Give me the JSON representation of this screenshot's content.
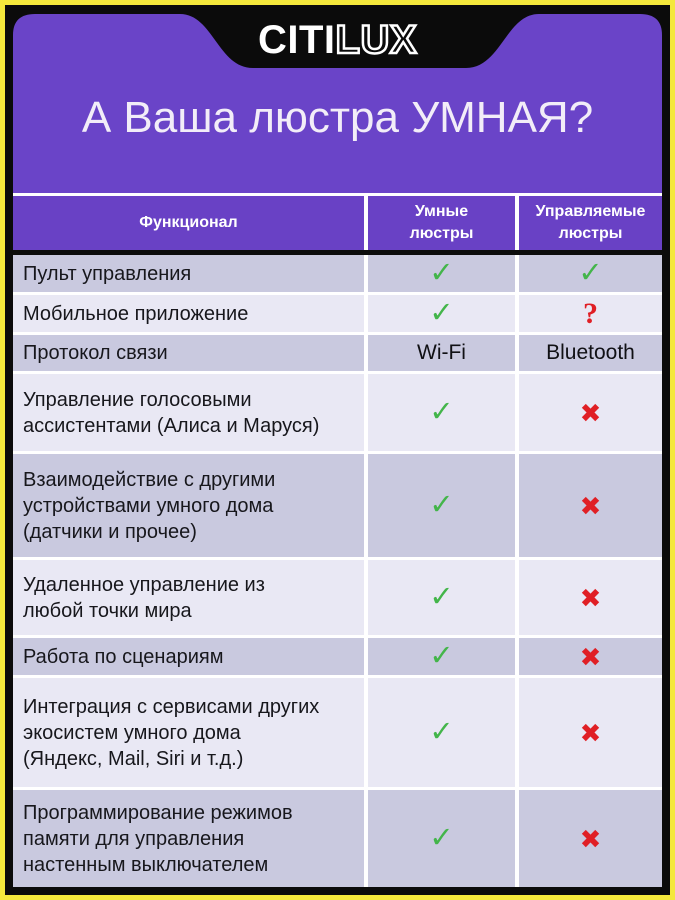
{
  "brand": {
    "logo_solid": "CITI",
    "logo_outline": "LUX"
  },
  "title": "А Ваша люстра УМНАЯ?",
  "table": {
    "headers": [
      "Функционал",
      "Умные\nлюстры",
      "Управляемые\nлюстры"
    ],
    "rows": [
      {
        "feature": "Пульт управления",
        "smart": "check",
        "controlled": "check"
      },
      {
        "feature": "Мобильное приложение",
        "smart": "check",
        "controlled": "question"
      },
      {
        "feature": "Протокол связи",
        "smart": "Wi-Fi",
        "controlled": "Bluetooth"
      },
      {
        "feature": "Управление голосовыми\nассистентами (Алиса и Маруся)",
        "smart": "check",
        "controlled": "cross"
      },
      {
        "feature": "Взаимодействие с другими\nустройствами умного дома\n(датчики и прочее)",
        "smart": "check",
        "controlled": "cross"
      },
      {
        "feature": "Удаленное управление из\nлюбой точки мира",
        "smart": "check",
        "controlled": "cross"
      },
      {
        "feature": "Работа по сценариям",
        "smart": "check",
        "controlled": "cross"
      },
      {
        "feature": "Интеграция с сервисами других\nэкосистем умного дома\n(Яндекс, Mail, Siri и т.д.)",
        "smart": "check",
        "controlled": "cross"
      },
      {
        "feature": "Программирование режимов\nпамяти для управления\nнастенным выключателем",
        "smart": "check",
        "controlled": "cross"
      }
    ]
  },
  "glyphs": {
    "check": "✓",
    "cross": "✖",
    "question": "?"
  },
  "colors": {
    "background_purple": "#6A44C8",
    "header_purple": "#6941C5",
    "border_yellow": "#F4E83C",
    "frame_black": "#0B0B0B",
    "row_dark": "#C9C9DF",
    "row_light": "#E9E8F4",
    "check_green": "#43B54A",
    "cross_red": "#E01F25",
    "title_text": "#F2EDF8"
  }
}
